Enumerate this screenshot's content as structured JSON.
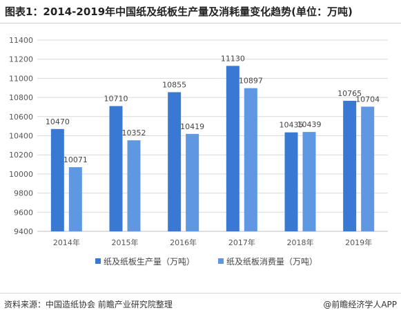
{
  "title": "图表1：2014-2019年中国纸及纸板生产量及消耗量变化趋势(单位：万吨)",
  "source": "资料来源：中国造纸协会 前瞻产业研究院整理",
  "credit": "@前瞻经济学人APP",
  "colors": {
    "production": "#3a79d3",
    "consumption": "#5f97e2",
    "grid": "#d9d9d9",
    "axis": "#bfbfbf"
  },
  "chart_data": {
    "type": "bar",
    "categories": [
      "2014年",
      "2015年",
      "2016年",
      "2017年",
      "2018年",
      "2019年"
    ],
    "series": [
      {
        "name": "纸及纸板生产量（万吨）",
        "values": [
          10470,
          10710,
          10855,
          11130,
          10435,
          10765
        ]
      },
      {
        "name": "纸及纸板消费量（万吨）",
        "values": [
          10071,
          10352,
          10419,
          10897,
          10439,
          10704
        ]
      }
    ],
    "ylim": [
      9400,
      11400
    ],
    "yticks": [
      9400,
      9600,
      9800,
      10000,
      10200,
      10400,
      10600,
      10800,
      11000,
      11200,
      11400
    ],
    "grid": true,
    "legend": "bottom"
  }
}
